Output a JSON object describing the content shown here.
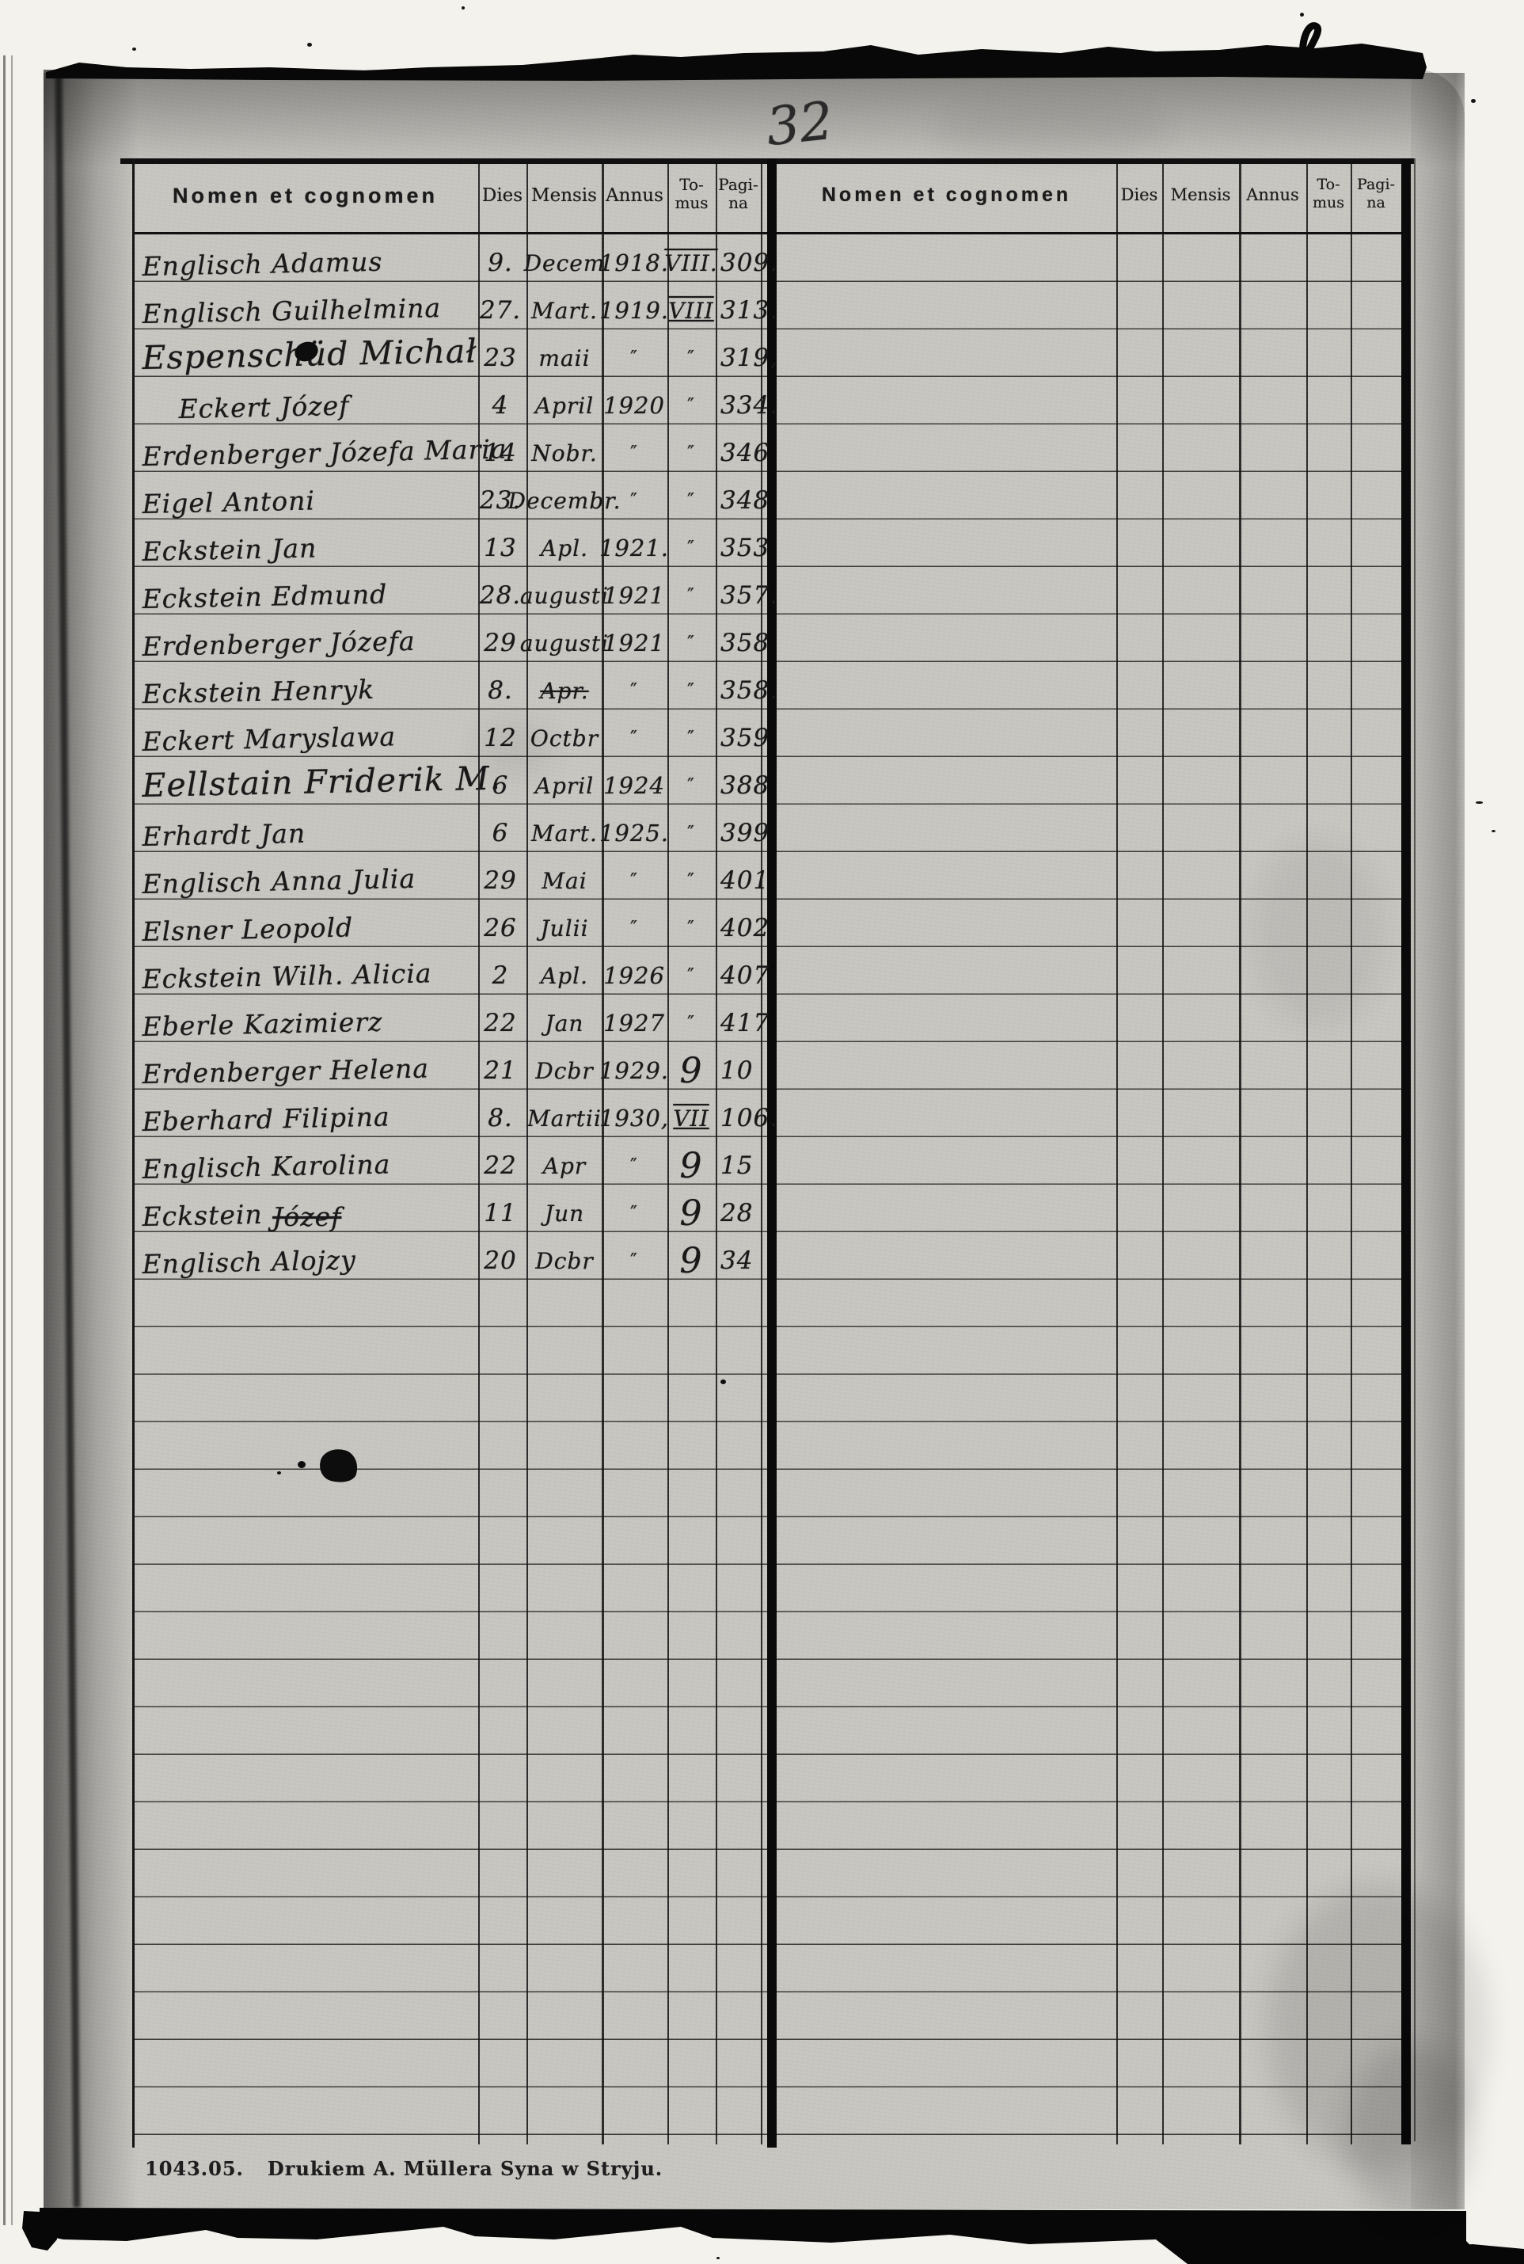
{
  "page": {
    "handwritten_page_number": "32",
    "footer": {
      "code": "1043.05.",
      "imprint": "Drukiem A. Müllera Syna w Stryju."
    }
  },
  "table": {
    "column_headers": {
      "name": "Nomen et cognomen",
      "dies": "Dies",
      "mensis": "Mensis",
      "annus": "Annus",
      "tomus_line1": "To-",
      "tomus_line2": "mus",
      "pagina_line1": "Pagi-",
      "pagina_line2": "na"
    },
    "left_entries": [
      {
        "name": "Englisch Adamus",
        "dies": "9.",
        "mensis": "Decem",
        "annus": "1918.",
        "tomus": "VIII.",
        "tomus_deco": "overline",
        "pagina": "309."
      },
      {
        "name": "Englisch Guilhelmina",
        "dies": "27.",
        "mensis": "Mart.",
        "annus": "1919.",
        "tomus": "VIII",
        "tomus_deco": "overline underline",
        "pagina": "313."
      },
      {
        "name": "Espenschüd Michał",
        "name_style": "lg",
        "dies": "23",
        "mensis": "maii",
        "annus": "″",
        "tomus": "″",
        "pagina": "319,"
      },
      {
        "name": "Eckert Józef",
        "name_style": "indent",
        "dies": "4",
        "mensis": "April",
        "annus": "1920",
        "tomus": "″",
        "pagina": "334."
      },
      {
        "name": "Erdenberger Józefa Maria",
        "dies": "14",
        "mensis": "Nobr.",
        "annus": "″",
        "tomus": "″",
        "pagina": "346"
      },
      {
        "name": "Eigel Antoni",
        "dies": "23.",
        "mensis": "Decembr.",
        "annus": "″",
        "tomus": "″",
        "pagina": "348"
      },
      {
        "name": "Eckstein Jan",
        "dies": "13",
        "mensis": "Apl.",
        "annus": "1921.",
        "tomus": "″",
        "pagina": "353"
      },
      {
        "name": "Eckstein Edmund",
        "dies": "28.",
        "mensis": "augusti",
        "annus": "1921",
        "tomus": "″",
        "pagina": "357."
      },
      {
        "name": "Erdenberger Józefa",
        "dies": "29",
        "mensis": "augusti",
        "annus": "1921",
        "tomus": "″",
        "pagina": "358"
      },
      {
        "name": "Eckstein Henryk",
        "dies": "8.",
        "mensis": "Apr.",
        "mensis_struck": true,
        "annus": "″",
        "tomus": "″",
        "pagina": "358."
      },
      {
        "name": "Eckert Maryslawa",
        "dies": "12",
        "mensis": "Octbr",
        "annus": "″",
        "tomus": "″",
        "pagina": "359"
      },
      {
        "name": "Eellstain Friderik M.",
        "name_style": "lg",
        "dies": "6",
        "mensis": "April",
        "annus": "1924",
        "tomus": "″",
        "pagina": "388"
      },
      {
        "name": "Erhardt Jan",
        "dies": "6",
        "mensis": "Mart.",
        "annus": "1925.",
        "tomus": "″",
        "pagina": "399"
      },
      {
        "name": "Englisch Anna Julia",
        "dies": "29",
        "mensis": "Mai",
        "annus": "″",
        "tomus": "″",
        "pagina": "401"
      },
      {
        "name": "Elsner Leopold",
        "dies": "26",
        "mensis": "Julii",
        "annus": "″",
        "tomus": "″",
        "pagina": "402"
      },
      {
        "name": "Eckstein Wilh. Alicia",
        "dies": "2",
        "mensis": "Apl.",
        "annus": "1926",
        "tomus": "″",
        "pagina": "407"
      },
      {
        "name": "Eberle Kazimierz",
        "dies": "22",
        "mensis": "Jan",
        "annus": "1927",
        "tomus": "″",
        "pagina": "417"
      },
      {
        "name": "Erdenberger Helena",
        "dies": "21",
        "mensis": "Dcbr",
        "annus": "1929.",
        "tomus": "9",
        "pagina": "10"
      },
      {
        "name": "Eberhard Filipina",
        "dies": "8.",
        "mensis": "Martii",
        "annus": "1930,",
        "tomus": "VII",
        "tomus_deco": "overline underline",
        "pagina": "106."
      },
      {
        "name": "Englisch Karolina",
        "dies": "22",
        "mensis": "Apr",
        "annus": "″",
        "tomus": "9",
        "pagina": "15"
      },
      {
        "name": "Eckstein",
        "name_struck": "Józef",
        "dies": "11",
        "mensis": "Jun",
        "annus": "″",
        "tomus": "9",
        "pagina": "28"
      },
      {
        "name": "Englisch Alojzy",
        "dies": "20",
        "mensis": "Dcbr",
        "annus": "″",
        "tomus": "9",
        "pagina": "34"
      }
    ],
    "right_entries": [],
    "blank_row_count": 18
  }
}
